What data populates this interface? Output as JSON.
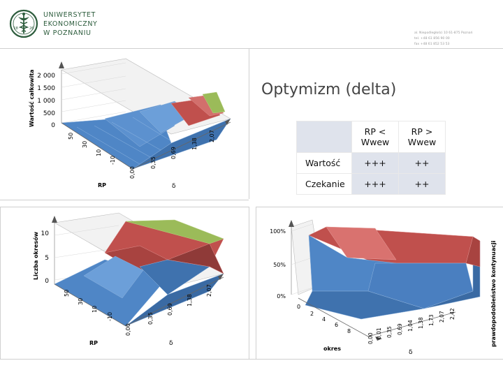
{
  "header": {
    "logo": {
      "line1": "UNIWERSYTET",
      "line2": "EKONOMICZNY",
      "line3": "W POZNANIU",
      "seal_left": "18",
      "seal_right": "26",
      "icon": "caduceus-seal-icon"
    },
    "address": {
      "line1": "al. Niepodległości 10  61-875 Poznań",
      "line2": "tel. +48 61 856 90 00",
      "line3": "fax +48 61 852 53 53"
    }
  },
  "slide": {
    "title": "Optymizm (delta)",
    "table": {
      "col1": "RP < Wwew",
      "col2": "RP > Wwew",
      "rows": [
        {
          "label": "Wartość",
          "v1": "+++",
          "v2": "++"
        },
        {
          "label": "Czekanie",
          "v1": "+++",
          "v2": "++"
        }
      ]
    }
  },
  "colors": {
    "blue_surface": "#4f86c6",
    "red_surface": "#c0504d",
    "green_surface": "#9bbb59",
    "brand_green": "#2c5c3c"
  },
  "chart_data": [
    {
      "type": "surface3d",
      "title": "",
      "zlabel": "Wartość całkowita",
      "xlabel": "RP",
      "ylabel": "δ",
      "z_ticks": [
        "0",
        "500",
        "1 000",
        "1 500",
        "2 000"
      ],
      "rp_ticks": [
        "50",
        "30",
        "10",
        "-10"
      ],
      "delta_ticks": [
        "0,00",
        "0,35",
        "0,69",
        "1,38",
        "2,07"
      ]
    },
    {
      "type": "surface3d",
      "title": "",
      "zlabel": "Liczba okresów",
      "xlabel": "RP",
      "ylabel": "δ",
      "z_ticks": [
        "0",
        "5",
        "10"
      ],
      "rp_ticks": [
        "50",
        "30",
        "10",
        "-10"
      ],
      "delta_ticks": [
        "0,00",
        "0,35",
        "0,69",
        "1,38",
        "2,07"
      ]
    },
    {
      "type": "surface3d",
      "title": "",
      "zlabel": "prawdopodobieństwo kontynuacji",
      "xlabel": "okres",
      "ylabel": "δ",
      "z_ticks": [
        "0%",
        "50%",
        "100%"
      ],
      "okres_ticks": [
        "0",
        "2",
        "4",
        "6",
        "8"
      ],
      "delta_ticks": [
        "0,00",
        "0,01",
        "0,35",
        "0,69",
        "1,04",
        "1,38",
        "1,73",
        "2,07",
        "2,42"
      ]
    }
  ]
}
